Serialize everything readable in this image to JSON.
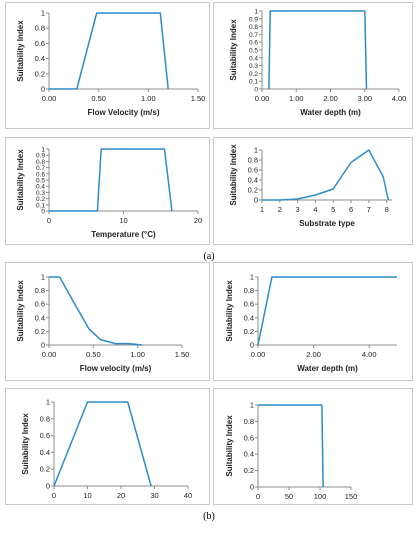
{
  "captions": [
    "(a)",
    "(b)"
  ],
  "colors": {
    "line": "#2E8CC6",
    "axis": "#8c8c8c",
    "text": "#222222",
    "frame": "#c8c8c8"
  },
  "chart_data": [
    {
      "type": "line",
      "xlabel": "Flow Velocity (m/s)",
      "ylabel": "Suitability Index",
      "xlim": [
        0,
        1.5
      ],
      "ylim": [
        0,
        1
      ],
      "xticks": [
        "0.00",
        "0.50",
        "1.00",
        "1.50"
      ],
      "yticks": [
        "0",
        "0.2",
        "0.4",
        "0.6",
        "0.8",
        "1"
      ],
      "series": [
        {
          "x": [
            0,
            0.28,
            0.48,
            1.12,
            1.2
          ],
          "y": [
            0,
            0,
            1,
            1,
            0
          ]
        }
      ]
    },
    {
      "type": "line",
      "xlabel": "Water depth (m)",
      "ylabel": "Suitability Index",
      "xlim": [
        0,
        4
      ],
      "ylim": [
        0,
        1
      ],
      "xticks": [
        "0.00",
        "1.00",
        "2.00",
        "3.00",
        "4.00"
      ],
      "yticks": [
        "0",
        "0.1",
        "0.2",
        "0.3",
        "0.4",
        "0.5",
        "0.6",
        "0.7",
        "0.8",
        "0.9",
        "1"
      ],
      "series": [
        {
          "x": [
            0.2,
            0.24,
            3.0,
            3.05
          ],
          "y": [
            0,
            1,
            1,
            0
          ]
        }
      ]
    },
    {
      "type": "line",
      "xlabel": "Temperature (°C)",
      "ylabel": "Suitability Index",
      "xlim": [
        0,
        20
      ],
      "ylim": [
        0,
        1
      ],
      "xticks": [
        "0",
        "10",
        "20"
      ],
      "yticks": [
        "0",
        "0.1",
        "0.2",
        "0.3",
        "0.4",
        "0.5",
        "0.6",
        "0.7",
        "0.8",
        "0.9",
        "1"
      ],
      "series": [
        {
          "x": [
            0,
            6.5,
            7,
            15.5,
            16.5
          ],
          "y": [
            0,
            0,
            1,
            1,
            0
          ]
        }
      ]
    },
    {
      "type": "line",
      "xlabel": "Substrate type",
      "ylabel": "Suitability Index",
      "xlim": [
        1,
        8.3
      ],
      "ylim": [
        0,
        1
      ],
      "xticks": [
        "1",
        "2",
        "3",
        "4",
        "5",
        "6",
        "7",
        "8"
      ],
      "yticks": [
        "0",
        "0.2",
        "0.4",
        "0.6",
        "0.8",
        "1"
      ],
      "series": [
        {
          "x": [
            1,
            2,
            3,
            4,
            5,
            6,
            7,
            7.8,
            8,
            8.1
          ],
          "y": [
            0,
            0,
            0.02,
            0.1,
            0.22,
            0.75,
            1,
            0.47,
            0.15,
            0
          ]
        }
      ]
    },
    {
      "type": "line",
      "xlabel": "Flow velocity (m/s)",
      "ylabel": "Suitability Index",
      "xlim": [
        0,
        1.5
      ],
      "ylim": [
        0,
        1
      ],
      "xticks": [
        "0.00",
        "0.50",
        "1.00",
        "1.50"
      ],
      "yticks": [
        "0",
        "0.2",
        "0.4",
        "0.6",
        "0.8",
        "1"
      ],
      "series": [
        {
          "x": [
            0,
            0.12,
            0.3,
            0.45,
            0.58,
            0.75,
            0.9,
            1.05
          ],
          "y": [
            1,
            1,
            0.58,
            0.24,
            0.08,
            0.02,
            0.02,
            0
          ]
        }
      ]
    },
    {
      "type": "line",
      "xlabel": "Water depth (m)",
      "ylabel": "Suitability Index",
      "xlim": [
        0,
        5
      ],
      "ylim": [
        0,
        1
      ],
      "xticks": [
        "0.00",
        "2.00",
        "4.00"
      ],
      "yticks": [
        "0",
        "0.2",
        "0.4",
        "0.6",
        "0.8",
        "1"
      ],
      "series": [
        {
          "x": [
            0,
            0.5,
            5
          ],
          "y": [
            0,
            1,
            1
          ]
        }
      ]
    },
    {
      "type": "line",
      "xlabel": "Temperature (°C)",
      "ylabel": "Suitability Index",
      "xlim": [
        0,
        40
      ],
      "ylim": [
        0,
        1
      ],
      "xticks": [
        "0",
        "10",
        "20",
        "30",
        "40"
      ],
      "yticks": [
        "0",
        "0.2",
        "0.4",
        "0.6",
        "0.8",
        "1"
      ],
      "series": [
        {
          "x": [
            0,
            10,
            22,
            29
          ],
          "y": [
            0,
            1,
            1,
            0
          ]
        }
      ]
    },
    {
      "type": "line",
      "xlabel": "Substrates size (mm)",
      "ylabel": "Suitability Index",
      "xlim": [
        0,
        150
      ],
      "ylim": [
        0,
        1
      ],
      "xticks": [
        "0",
        "50",
        "100",
        "150"
      ],
      "yticks": [
        "0",
        "0.2",
        "0.4",
        "0.6",
        "0.8",
        "1"
      ],
      "series": [
        {
          "x": [
            0,
            103,
            105
          ],
          "y": [
            1,
            1,
            0
          ]
        }
      ]
    }
  ]
}
